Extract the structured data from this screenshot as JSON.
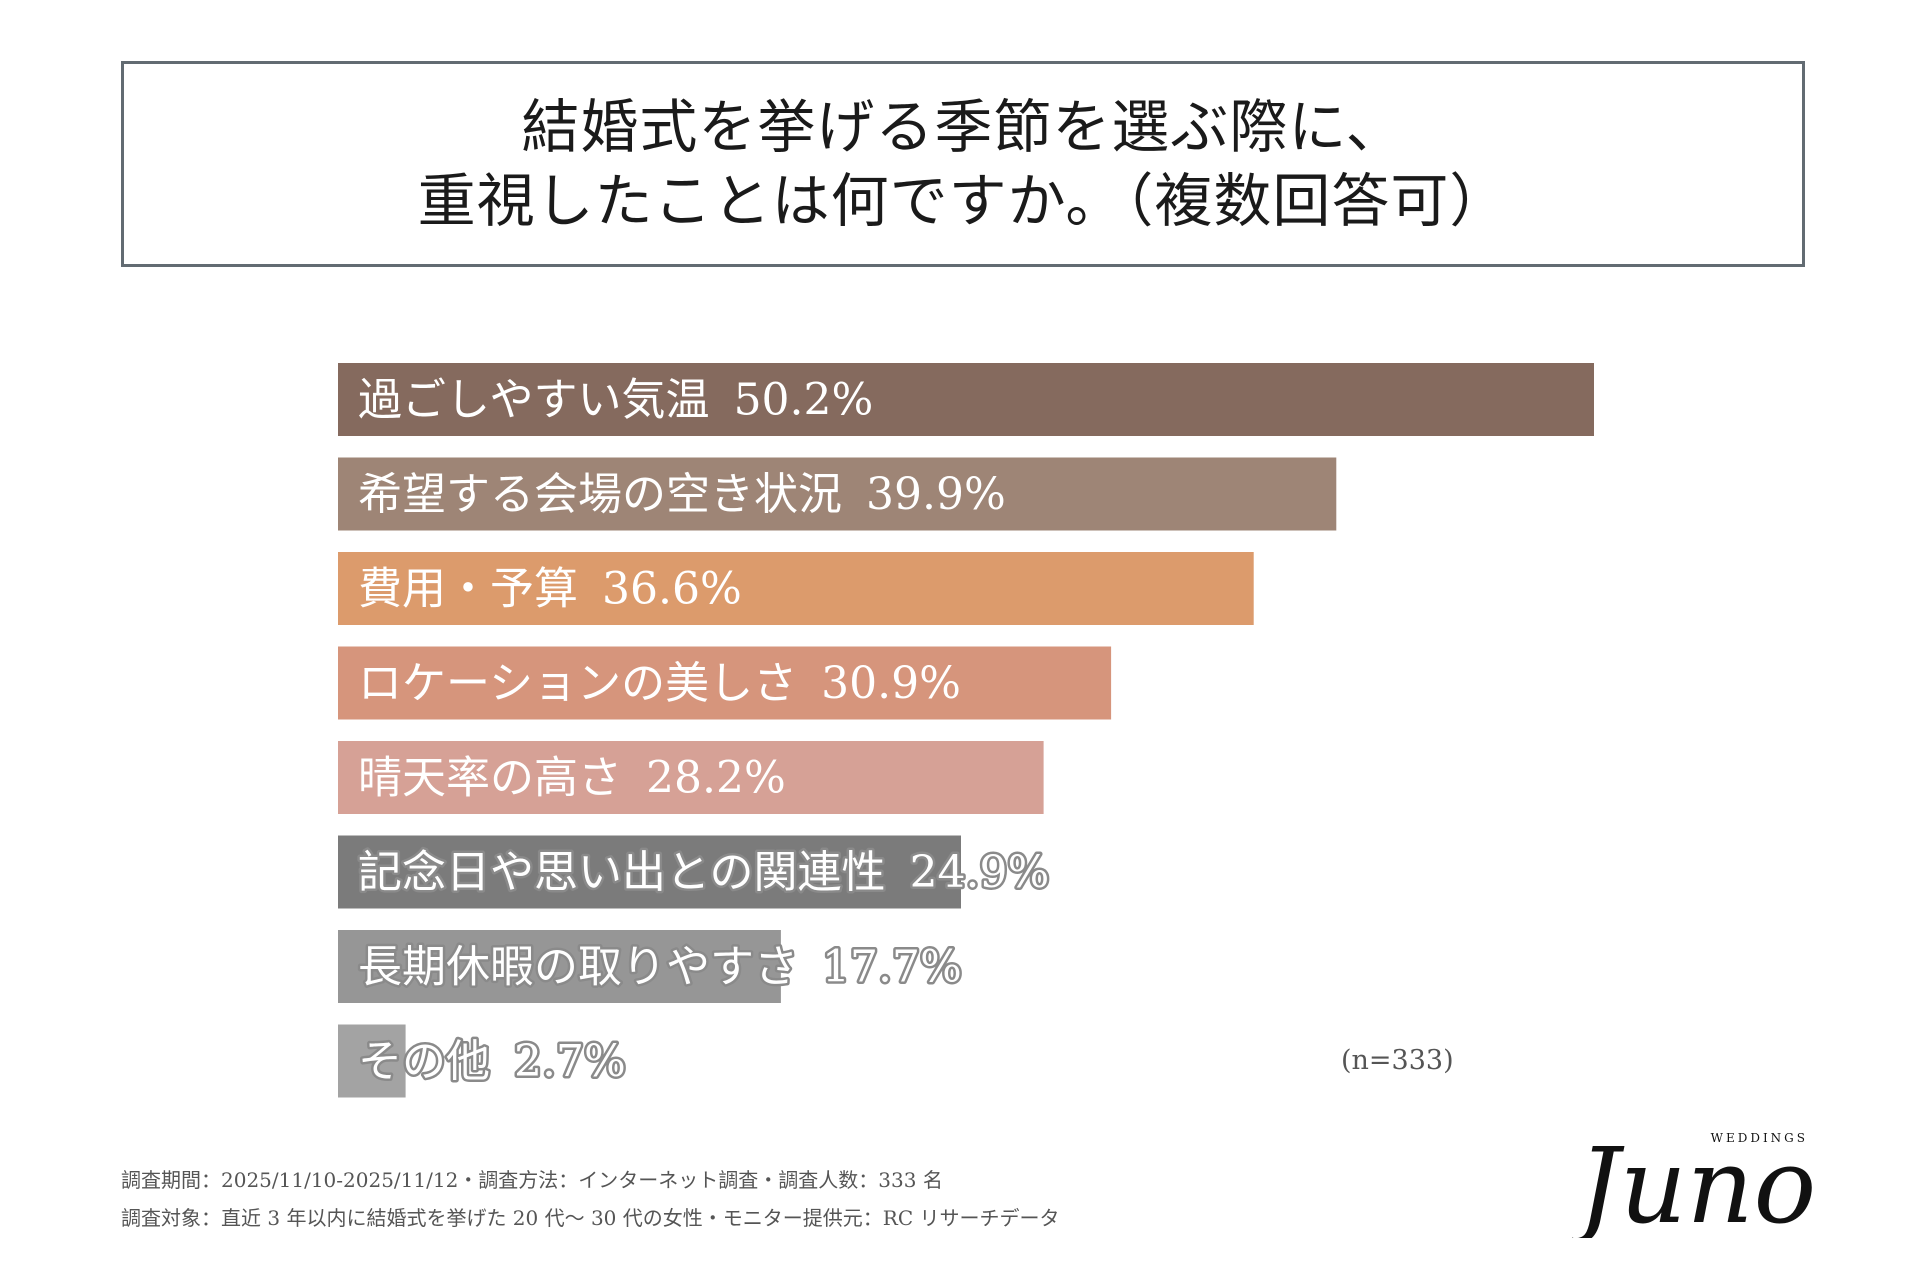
{
  "title": {
    "line1": "結婚式を挙げる季節を選ぶ際に、",
    "line2": "重視したことは何ですか。（複数回答可）"
  },
  "chart_data": {
    "type": "bar",
    "orientation": "horizontal",
    "categories": [
      "過ごしやすい気温",
      "希望する会場の空き状況",
      "費用・予算",
      "ロケーションの美しさ",
      "晴天率の高さ",
      "記念日や思い出との関連性",
      "長期休暇の取りやすさ",
      "その他"
    ],
    "values": [
      50.2,
      39.9,
      36.6,
      30.9,
      28.2,
      24.9,
      17.7,
      2.7
    ],
    "value_labels": [
      "50.2%",
      "39.9%",
      "36.6%",
      "30.9%",
      "28.2%",
      "24.9%",
      "17.7%",
      "2.7%"
    ],
    "colors": [
      "#856a5e",
      "#9e8576",
      "#dc9b6c",
      "#d6957c",
      "#d6a196",
      "#7b7b7b",
      "#969696",
      "#a3a3a3"
    ],
    "xlim": [
      0,
      50.2
    ],
    "grid": false,
    "note": "(n=333)"
  },
  "footer": {
    "line1": "調査期間：2025/11/10-2025/11/12・調査方法：インターネット調査・調査人数：333 名",
    "line2": "調査対象：直近 3 年以内に結婚式を挙げた 20 代〜 30 代の女性・モニター提供元：RC リサーチデータ"
  },
  "logo": {
    "text": "Juno",
    "subtext": "WEDDINGS"
  }
}
